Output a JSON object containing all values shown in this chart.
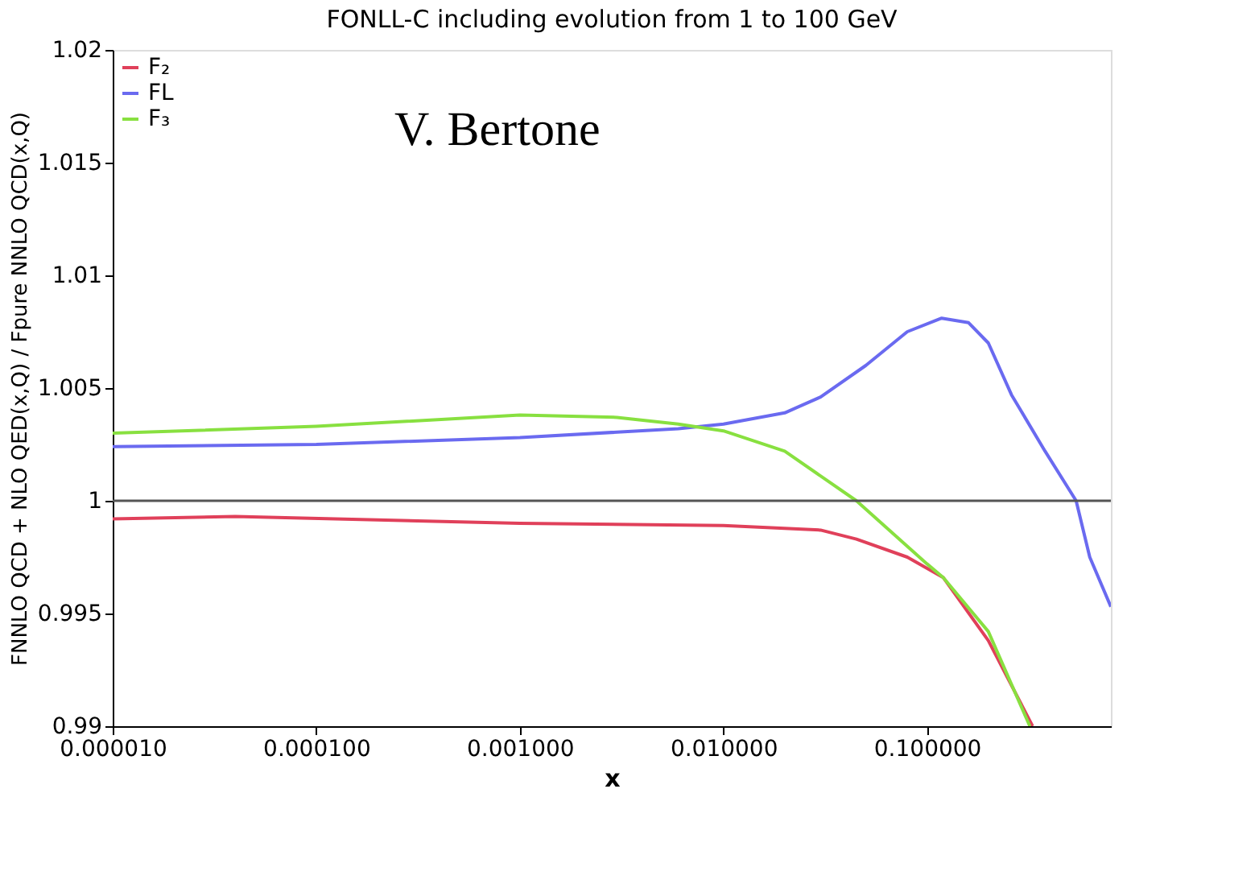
{
  "chart_data": {
    "type": "line",
    "title": "FONLL-C including evolution from 1 to 100 GeV",
    "xlabel": "x",
    "ylabel": "FNNLO QCD + NLO QED(x,Q) / Fpure NNLO QCD(x,Q)",
    "annotations": [
      "V. Bertone"
    ],
    "log": "x",
    "grid": false,
    "legend": "top left",
    "line_style": "solid",
    "marker": "none",
    "xlim": [
      1e-05,
      0.8
    ],
    "xticks": [
      {
        "value": 1e-05,
        "label": "0.000010"
      },
      {
        "value": 0.0001,
        "label": "0.000100"
      },
      {
        "value": 0.001,
        "label": "0.001000"
      },
      {
        "value": 0.01,
        "label": "0.010000"
      },
      {
        "value": 0.1,
        "label": "0.100000"
      }
    ],
    "ylim": [
      0.99,
      1.02
    ],
    "yticks": [
      0.99,
      0.995,
      1,
      1.005,
      1.01,
      1.015,
      1.02
    ],
    "ref_lines": [
      {
        "axis": "y",
        "value": 1,
        "color": "#555555"
      }
    ],
    "series": [
      {
        "name": "F₂",
        "color": "#e0405a",
        "x": [
          1e-05,
          4e-05,
          0.001,
          0.01,
          0.03,
          0.045,
          0.08,
          0.12,
          0.2,
          0.33
        ],
        "values": [
          0.9992,
          0.9993,
          0.999,
          0.9989,
          0.9987,
          0.9983,
          0.9975,
          0.9966,
          0.9938,
          0.99
        ]
      },
      {
        "name": "FL",
        "color": "#6a6af0",
        "x": [
          1e-05,
          0.0001,
          0.001,
          0.006,
          0.01,
          0.02,
          0.03,
          0.05,
          0.08,
          0.118,
          0.16,
          0.2,
          0.26,
          0.38,
          0.54,
          0.63,
          0.8
        ],
        "values": [
          1.0024,
          1.0025,
          1.0028,
          1.0032,
          1.0034,
          1.0039,
          1.0046,
          1.006,
          1.0075,
          1.0081,
          1.0079,
          1.007,
          1.0047,
          1.0022,
          1.0,
          0.9975,
          0.9953
        ]
      },
      {
        "name": "F₃",
        "color": "#88e040",
        "x": [
          1e-05,
          0.0001,
          0.001,
          0.003,
          0.006,
          0.01,
          0.02,
          0.045,
          0.1,
          0.12,
          0.2,
          0.32
        ],
        "values": [
          1.003,
          1.0033,
          1.0038,
          1.0037,
          1.0034,
          1.0031,
          1.0022,
          1.0,
          0.9972,
          0.9966,
          0.9942,
          0.99
        ]
      }
    ]
  }
}
